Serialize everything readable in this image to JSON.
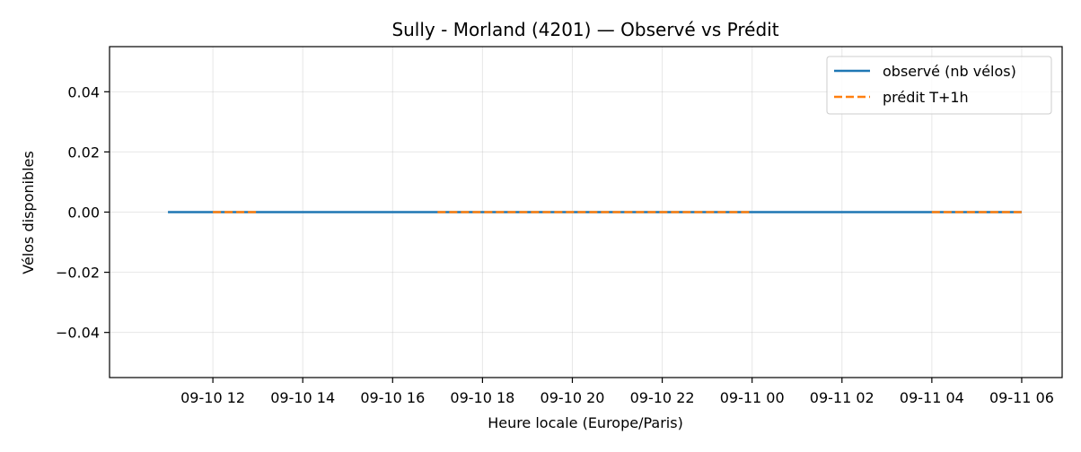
{
  "chart_data": {
    "type": "line",
    "title": "Sully - Morland (4201) — Observé vs Prédit",
    "xlabel": "Heure locale (Europe/Paris)",
    "ylabel": "Vélos disponibles",
    "xlim_hours": [
      -1.3,
      19.9
    ],
    "ylim": [
      -0.055,
      0.055
    ],
    "x_ticks": [
      {
        "hour": 1,
        "label": "09-10 12"
      },
      {
        "hour": 3,
        "label": "09-10 14"
      },
      {
        "hour": 5,
        "label": "09-10 16"
      },
      {
        "hour": 7,
        "label": "09-10 18"
      },
      {
        "hour": 9,
        "label": "09-10 20"
      },
      {
        "hour": 11,
        "label": "09-10 22"
      },
      {
        "hour": 13,
        "label": "09-11 00"
      },
      {
        "hour": 15,
        "label": "09-11 02"
      },
      {
        "hour": 17,
        "label": "09-11 04"
      },
      {
        "hour": 19,
        "label": "09-11 06"
      }
    ],
    "y_ticks": [
      {
        "value": 0.04,
        "label": "0.04"
      },
      {
        "value": 0.02,
        "label": "0.02"
      },
      {
        "value": 0.0,
        "label": "0.00"
      },
      {
        "value": -0.02,
        "label": "−0.02"
      },
      {
        "value": -0.04,
        "label": "−0.04"
      }
    ],
    "grid": true,
    "legend_position": "top-right",
    "series": [
      {
        "name": "observé (nb vélos)",
        "color": "#1f77b4",
        "style": "solid",
        "segments": [
          {
            "x": [
              0,
              19
            ],
            "y": [
              0,
              0
            ]
          }
        ]
      },
      {
        "name": "prédit T+1h",
        "color": "#ff7f0e",
        "style": "dashed",
        "segments": [
          {
            "x": [
              1,
              2
            ],
            "y": [
              0,
              0
            ]
          },
          {
            "x": [
              6,
              13
            ],
            "y": [
              0,
              0
            ]
          },
          {
            "x": [
              17,
              19
            ],
            "y": [
              0,
              0
            ]
          }
        ]
      }
    ]
  }
}
